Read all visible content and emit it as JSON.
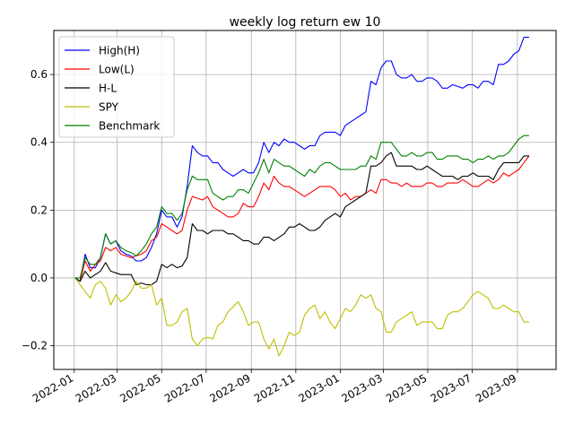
{
  "chart_data": {
    "type": "line",
    "title": "weekly log return ew 10",
    "xlabel": "",
    "ylabel": "",
    "grid": true,
    "legend_position": "top-left",
    "x_ticks": [
      "2022-01",
      "2022-03",
      "2022-05",
      "2022-07",
      "2022-09",
      "2022-11",
      "2023-01",
      "2023-03",
      "2023-05",
      "2023-07",
      "2023-09"
    ],
    "y_ticks": [
      "−0.2",
      "0.0",
      "0.2",
      "0.4",
      "0.6"
    ],
    "ylim": [
      -0.27,
      0.73
    ],
    "xlim": [
      "2021-12-04",
      "2023-10-24"
    ],
    "x": [
      "2022-01-02",
      "2022-01-09",
      "2022-01-16",
      "2022-01-23",
      "2022-01-30",
      "2022-02-06",
      "2022-02-13",
      "2022-02-20",
      "2022-02-27",
      "2022-03-06",
      "2022-03-13",
      "2022-03-20",
      "2022-03-27",
      "2022-04-03",
      "2022-04-10",
      "2022-04-17",
      "2022-04-24",
      "2022-05-01",
      "2022-05-08",
      "2022-05-15",
      "2022-05-22",
      "2022-05-29",
      "2022-06-05",
      "2022-06-12",
      "2022-06-19",
      "2022-06-26",
      "2022-07-03",
      "2022-07-10",
      "2022-07-17",
      "2022-07-24",
      "2022-07-31",
      "2022-08-07",
      "2022-08-14",
      "2022-08-21",
      "2022-08-28",
      "2022-09-04",
      "2022-09-11",
      "2022-09-18",
      "2022-09-25",
      "2022-10-02",
      "2022-10-09",
      "2022-10-16",
      "2022-10-23",
      "2022-10-30",
      "2022-11-06",
      "2022-11-13",
      "2022-11-20",
      "2022-11-27",
      "2022-12-04",
      "2022-12-11",
      "2022-12-18",
      "2022-12-25",
      "2023-01-01",
      "2023-01-08",
      "2023-01-15",
      "2023-01-22",
      "2023-01-29",
      "2023-02-05",
      "2023-02-12",
      "2023-02-19",
      "2023-02-26",
      "2023-03-05",
      "2023-03-12",
      "2023-03-19",
      "2023-03-26",
      "2023-04-02",
      "2023-04-09",
      "2023-04-16",
      "2023-04-23",
      "2023-04-30",
      "2023-05-07",
      "2023-05-14",
      "2023-05-21",
      "2023-05-28",
      "2023-06-04",
      "2023-06-11",
      "2023-06-18",
      "2023-06-25",
      "2023-07-02",
      "2023-07-09",
      "2023-07-16",
      "2023-07-23",
      "2023-07-30",
      "2023-08-06",
      "2023-08-13",
      "2023-08-20",
      "2023-08-27",
      "2023-09-03",
      "2023-09-10",
      "2023-09-17"
    ],
    "series": [
      {
        "name": "High(H)",
        "color": "#0000ff",
        "values": [
          0.0,
          -0.01,
          0.07,
          0.03,
          0.03,
          0.06,
          0.13,
          0.1,
          0.11,
          0.08,
          0.07,
          0.065,
          0.05,
          0.05,
          0.06,
          0.09,
          0.13,
          0.2,
          0.18,
          0.18,
          0.15,
          0.18,
          0.27,
          0.39,
          0.37,
          0.36,
          0.36,
          0.34,
          0.34,
          0.32,
          0.31,
          0.3,
          0.31,
          0.32,
          0.31,
          0.31,
          0.34,
          0.4,
          0.37,
          0.4,
          0.39,
          0.41,
          0.4,
          0.4,
          0.39,
          0.38,
          0.39,
          0.39,
          0.42,
          0.43,
          0.43,
          0.43,
          0.42,
          0.45,
          0.46,
          0.47,
          0.48,
          0.49,
          0.58,
          0.57,
          0.62,
          0.64,
          0.64,
          0.6,
          0.59,
          0.59,
          0.6,
          0.58,
          0.58,
          0.59,
          0.59,
          0.58,
          0.56,
          0.56,
          0.57,
          0.565,
          0.56,
          0.57,
          0.57,
          0.56,
          0.58,
          0.58,
          0.57,
          0.63,
          0.63,
          0.64,
          0.66,
          0.67,
          0.71,
          0.71
        ]
      },
      {
        "name": "Low(L)",
        "color": "#ff0000",
        "values": [
          0.0,
          -0.01,
          0.05,
          0.02,
          0.04,
          0.05,
          0.09,
          0.08,
          0.09,
          0.07,
          0.065,
          0.06,
          0.065,
          0.07,
          0.08,
          0.11,
          0.12,
          0.16,
          0.15,
          0.14,
          0.13,
          0.14,
          0.2,
          0.24,
          0.235,
          0.23,
          0.24,
          0.21,
          0.2,
          0.19,
          0.18,
          0.18,
          0.19,
          0.22,
          0.21,
          0.21,
          0.24,
          0.28,
          0.26,
          0.3,
          0.28,
          0.27,
          0.27,
          0.26,
          0.25,
          0.24,
          0.25,
          0.26,
          0.27,
          0.27,
          0.27,
          0.26,
          0.24,
          0.25,
          0.23,
          0.24,
          0.24,
          0.25,
          0.26,
          0.25,
          0.29,
          0.29,
          0.28,
          0.28,
          0.27,
          0.28,
          0.27,
          0.27,
          0.27,
          0.28,
          0.28,
          0.27,
          0.27,
          0.28,
          0.28,
          0.28,
          0.29,
          0.28,
          0.27,
          0.27,
          0.28,
          0.29,
          0.28,
          0.29,
          0.31,
          0.3,
          0.31,
          0.32,
          0.34,
          0.36
        ]
      },
      {
        "name": "H-L",
        "color": "#000000",
        "values": [
          0.0,
          -0.01,
          0.02,
          0.0,
          0.01,
          0.02,
          0.045,
          0.02,
          0.015,
          0.01,
          0.01,
          0.01,
          -0.02,
          -0.015,
          -0.02,
          -0.02,
          -0.01,
          0.04,
          0.03,
          0.04,
          0.03,
          0.035,
          0.06,
          0.16,
          0.14,
          0.14,
          0.13,
          0.14,
          0.14,
          0.14,
          0.13,
          0.13,
          0.12,
          0.11,
          0.11,
          0.1,
          0.1,
          0.12,
          0.12,
          0.11,
          0.12,
          0.13,
          0.15,
          0.15,
          0.16,
          0.15,
          0.14,
          0.14,
          0.15,
          0.17,
          0.18,
          0.19,
          0.18,
          0.21,
          0.22,
          0.23,
          0.24,
          0.25,
          0.33,
          0.33,
          0.34,
          0.36,
          0.37,
          0.33,
          0.33,
          0.33,
          0.33,
          0.32,
          0.32,
          0.33,
          0.32,
          0.31,
          0.3,
          0.3,
          0.3,
          0.29,
          0.3,
          0.3,
          0.31,
          0.3,
          0.3,
          0.3,
          0.29,
          0.32,
          0.34,
          0.34,
          0.34,
          0.34,
          0.36,
          0.36
        ]
      },
      {
        "name": "SPY",
        "color": "#bfbf00",
        "values": [
          0.0,
          -0.02,
          -0.04,
          -0.06,
          -0.02,
          -0.01,
          -0.03,
          -0.08,
          -0.05,
          -0.07,
          -0.06,
          -0.04,
          -0.01,
          -0.03,
          -0.03,
          -0.02,
          -0.08,
          -0.06,
          -0.14,
          -0.14,
          -0.13,
          -0.1,
          -0.09,
          -0.18,
          -0.2,
          -0.18,
          -0.175,
          -0.18,
          -0.14,
          -0.13,
          -0.1,
          -0.085,
          -0.07,
          -0.1,
          -0.14,
          -0.13,
          -0.13,
          -0.18,
          -0.21,
          -0.18,
          -0.23,
          -0.2,
          -0.16,
          -0.17,
          -0.16,
          -0.11,
          -0.09,
          -0.08,
          -0.12,
          -0.1,
          -0.13,
          -0.15,
          -0.12,
          -0.09,
          -0.1,
          -0.08,
          -0.05,
          -0.06,
          -0.05,
          -0.09,
          -0.1,
          -0.16,
          -0.16,
          -0.13,
          -0.12,
          -0.11,
          -0.1,
          -0.14,
          -0.13,
          -0.13,
          -0.13,
          -0.15,
          -0.15,
          -0.11,
          -0.1,
          -0.1,
          -0.09,
          -0.07,
          -0.05,
          -0.04,
          -0.05,
          -0.06,
          -0.09,
          -0.09,
          -0.08,
          -0.09,
          -0.1,
          -0.1,
          -0.13,
          -0.13
        ]
      },
      {
        "name": "Benchmark",
        "color": "#008000",
        "values": [
          0.0,
          0.0,
          0.06,
          0.04,
          0.04,
          0.06,
          0.13,
          0.1,
          0.11,
          0.09,
          0.08,
          0.075,
          0.065,
          0.08,
          0.1,
          0.13,
          0.15,
          0.21,
          0.19,
          0.19,
          0.17,
          0.19,
          0.26,
          0.3,
          0.29,
          0.29,
          0.29,
          0.25,
          0.24,
          0.23,
          0.24,
          0.24,
          0.26,
          0.26,
          0.25,
          0.28,
          0.31,
          0.35,
          0.31,
          0.35,
          0.34,
          0.33,
          0.33,
          0.32,
          0.31,
          0.3,
          0.32,
          0.31,
          0.33,
          0.34,
          0.34,
          0.33,
          0.32,
          0.32,
          0.32,
          0.32,
          0.33,
          0.33,
          0.36,
          0.35,
          0.4,
          0.4,
          0.4,
          0.38,
          0.36,
          0.36,
          0.37,
          0.36,
          0.36,
          0.37,
          0.37,
          0.35,
          0.35,
          0.36,
          0.36,
          0.36,
          0.35,
          0.35,
          0.34,
          0.35,
          0.35,
          0.36,
          0.35,
          0.36,
          0.36,
          0.37,
          0.39,
          0.41,
          0.42,
          0.42
        ]
      }
    ]
  }
}
